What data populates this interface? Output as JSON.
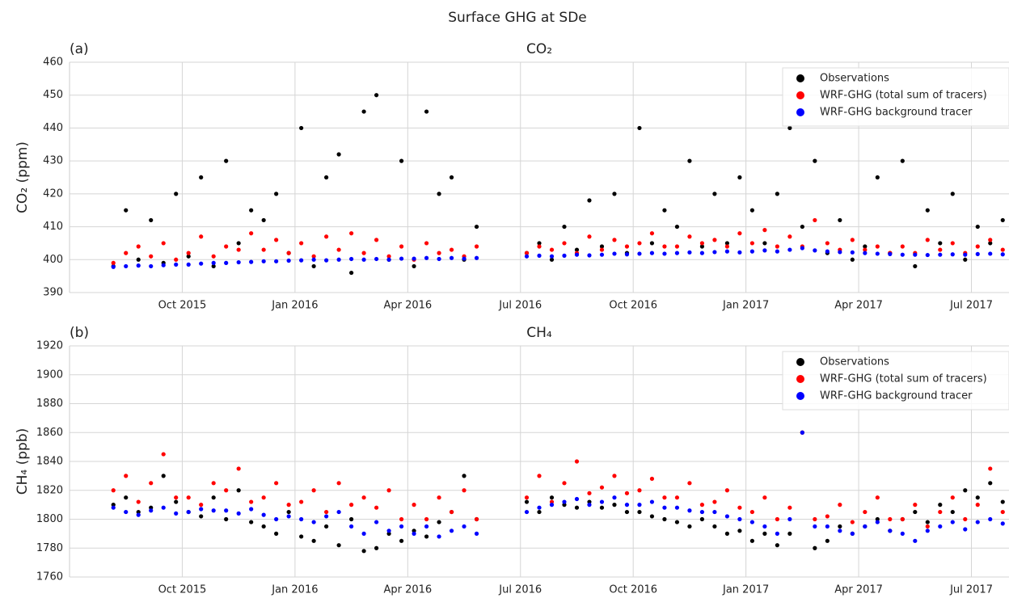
{
  "title": "Surface GHG at SDe",
  "chart_data": [
    {
      "type": "scatter",
      "panel_label": "(a)",
      "title": "CO₂",
      "ylabel": "CO₂ (ppm)",
      "x": [
        "2015-08",
        "2015-08",
        "2015-08",
        "2015-09",
        "2015-09",
        "2015-09",
        "2015-10",
        "2015-10",
        "2015-10",
        "2015-11",
        "2015-11",
        "2015-11",
        "2015-12",
        "2015-12",
        "2015-12",
        "2016-01",
        "2016-01",
        "2016-01",
        "2016-02",
        "2016-02",
        "2016-02",
        "2016-03",
        "2016-03",
        "2016-03",
        "2016-04",
        "2016-04",
        "2016-04",
        "2016-05",
        "2016-05",
        "2016-05",
        "2016-07",
        "2016-07",
        "2016-07",
        "2016-08",
        "2016-08",
        "2016-08",
        "2016-09",
        "2016-09",
        "2016-09",
        "2016-10",
        "2016-10",
        "2016-10",
        "2016-11",
        "2016-11",
        "2016-11",
        "2016-12",
        "2016-12",
        "2016-12",
        "2017-01",
        "2017-01",
        "2017-01",
        "2017-02",
        "2017-02",
        "2017-02",
        "2017-03",
        "2017-03",
        "2017-03",
        "2017-04",
        "2017-04",
        "2017-04",
        "2017-05",
        "2017-05",
        "2017-05",
        "2017-06",
        "2017-06",
        "2017-06",
        "2017-07",
        "2017-07",
        "2017-07"
      ],
      "series": [
        {
          "name": "Observations",
          "color": "#000000",
          "values": [
            398,
            415,
            400,
            412,
            399,
            420,
            401,
            425,
            398,
            430,
            405,
            415,
            412,
            420,
            402,
            440,
            398,
            425,
            432,
            396,
            445,
            450,
            400,
            430,
            398,
            445,
            420,
            425,
            400,
            410,
            402,
            405,
            400,
            410,
            403,
            418,
            404,
            420,
            402,
            440,
            405,
            415,
            410,
            430,
            404,
            420,
            405,
            425,
            415,
            405,
            420,
            440,
            410,
            430,
            402,
            412,
            400,
            404,
            425,
            402,
            430,
            398,
            415,
            405,
            420,
            400,
            410,
            405,
            412
          ]
        },
        {
          "name": "WRF-GHG (total sum of tracers)",
          "color": "#ff0000",
          "values": [
            399,
            402,
            404,
            401,
            405,
            400,
            402,
            407,
            401,
            404,
            403,
            408,
            403,
            406,
            402,
            405,
            401,
            407,
            403,
            408,
            402,
            406,
            401,
            404,
            400,
            405,
            402,
            403,
            401,
            404,
            402,
            404,
            403,
            405,
            402,
            407,
            403,
            406,
            404,
            405,
            408,
            404,
            404,
            407,
            405,
            406,
            404,
            408,
            405,
            409,
            404,
            407,
            404,
            412,
            405,
            403,
            406,
            403,
            404,
            402,
            404,
            402,
            406,
            403,
            405,
            402,
            404,
            406,
            403
          ]
        },
        {
          "name": "WRF-GHG background tracer",
          "color": "#0000ff",
          "values": [
            397.8,
            398,
            398.2,
            398,
            398.3,
            398.5,
            398.5,
            398.8,
            399,
            399,
            399.2,
            399.3,
            399.5,
            399.5,
            399.7,
            399.8,
            400,
            399.8,
            400,
            400.2,
            400,
            400.2,
            400,
            400.3,
            400.3,
            400.5,
            400.2,
            400.5,
            400.3,
            400.5,
            401,
            401.2,
            401,
            401.2,
            401.5,
            401.3,
            401.5,
            401.8,
            401.6,
            401.8,
            402,
            401.8,
            402,
            402.2,
            402,
            402.3,
            402.5,
            402.2,
            402.5,
            402.8,
            402.5,
            403,
            403.5,
            402.8,
            402.5,
            402.3,
            402.2,
            402,
            401.8,
            401.7,
            401.5,
            401.5,
            401.4,
            401.5,
            401.6,
            401.5,
            401.7,
            401.8,
            401.6
          ]
        }
      ],
      "xlim": [
        "2015-07",
        "2017-08"
      ],
      "xticks": [
        {
          "value": "2015-10",
          "label": "Oct 2015"
        },
        {
          "value": "2016-01",
          "label": "Jan 2016"
        },
        {
          "value": "2016-04",
          "label": "Apr 2016"
        },
        {
          "value": "2016-07",
          "label": "Jul 2016"
        },
        {
          "value": "2016-10",
          "label": "Oct 2016"
        },
        {
          "value": "2017-01",
          "label": "Jan 2017"
        },
        {
          "value": "2017-04",
          "label": "Apr 2017"
        },
        {
          "value": "2017-07",
          "label": "Jul 2017"
        }
      ],
      "ylim": [
        390,
        460
      ],
      "yticks": [
        390,
        400,
        410,
        420,
        430,
        440,
        450,
        460
      ],
      "grid": true,
      "legend": "upper right"
    },
    {
      "type": "scatter",
      "panel_label": "(b)",
      "title": "CH₄",
      "ylabel": "CH₄ (ppb)",
      "x": [
        "2015-08",
        "2015-08",
        "2015-08",
        "2015-09",
        "2015-09",
        "2015-09",
        "2015-10",
        "2015-10",
        "2015-10",
        "2015-11",
        "2015-11",
        "2015-11",
        "2015-12",
        "2015-12",
        "2015-12",
        "2016-01",
        "2016-01",
        "2016-01",
        "2016-02",
        "2016-02",
        "2016-02",
        "2016-03",
        "2016-03",
        "2016-03",
        "2016-04",
        "2016-04",
        "2016-04",
        "2016-05",
        "2016-05",
        "2016-05",
        "2016-07",
        "2016-07",
        "2016-07",
        "2016-08",
        "2016-08",
        "2016-08",
        "2016-09",
        "2016-09",
        "2016-09",
        "2016-10",
        "2016-10",
        "2016-10",
        "2016-11",
        "2016-11",
        "2016-11",
        "2016-12",
        "2016-12",
        "2016-12",
        "2017-01",
        "2017-01",
        "2017-01",
        "2017-02",
        "2017-02",
        "2017-02",
        "2017-03",
        "2017-03",
        "2017-03",
        "2017-04",
        "2017-04",
        "2017-04",
        "2017-05",
        "2017-05",
        "2017-05",
        "2017-06",
        "2017-06",
        "2017-06",
        "2017-07",
        "2017-07",
        "2017-07"
      ],
      "series": [
        {
          "name": "Observations",
          "color": "#000000",
          "values": [
            1810,
            1815,
            1805,
            1808,
            1830,
            1812,
            1805,
            1802,
            1815,
            1800,
            1820,
            1798,
            1795,
            1790,
            1805,
            1788,
            1785,
            1795,
            1782,
            1800,
            1778,
            1780,
            1790,
            1785,
            1792,
            1788,
            1798,
            1805,
            1830,
            1800,
            1812,
            1805,
            1815,
            1810,
            1808,
            1812,
            1808,
            1810,
            1805,
            1805,
            1802,
            1800,
            1798,
            1795,
            1800,
            1795,
            1790,
            1792,
            1785,
            1790,
            1782,
            1790,
            1860,
            1780,
            1785,
            1795,
            1790,
            1795,
            1800,
            1792,
            1800,
            1805,
            1798,
            1810,
            1805,
            1820,
            1815,
            1825,
            1812
          ]
        },
        {
          "name": "WRF-GHG (total sum of tracers)",
          "color": "#ff0000",
          "values": [
            1820,
            1830,
            1812,
            1825,
            1845,
            1815,
            1815,
            1810,
            1825,
            1820,
            1835,
            1812,
            1815,
            1825,
            1810,
            1812,
            1820,
            1805,
            1825,
            1810,
            1815,
            1808,
            1820,
            1800,
            1810,
            1800,
            1815,
            1805,
            1820,
            1800,
            1815,
            1830,
            1812,
            1825,
            1840,
            1818,
            1822,
            1830,
            1818,
            1820,
            1828,
            1815,
            1815,
            1825,
            1810,
            1812,
            1820,
            1808,
            1805,
            1815,
            1800,
            1808,
            1860,
            1800,
            1802,
            1810,
            1798,
            1805,
            1815,
            1800,
            1800,
            1810,
            1795,
            1805,
            1815,
            1800,
            1810,
            1835,
            1805
          ]
        },
        {
          "name": "WRF-GHG background tracer",
          "color": "#0000ff",
          "values": [
            1808,
            1805,
            1803,
            1806,
            1808,
            1804,
            1805,
            1807,
            1806,
            1806,
            1804,
            1807,
            1803,
            1800,
            1802,
            1800,
            1798,
            1802,
            1805,
            1795,
            1790,
            1798,
            1792,
            1795,
            1790,
            1795,
            1788,
            1792,
            1795,
            1790,
            1805,
            1808,
            1810,
            1812,
            1814,
            1810,
            1812,
            1815,
            1810,
            1810,
            1812,
            1808,
            1808,
            1806,
            1805,
            1805,
            1802,
            1800,
            1798,
            1795,
            1790,
            1800,
            1860,
            1795,
            1795,
            1792,
            1790,
            1795,
            1798,
            1792,
            1790,
            1785,
            1792,
            1795,
            1798,
            1793,
            1798,
            1800,
            1797
          ]
        }
      ],
      "xlim": [
        "2015-07",
        "2017-08"
      ],
      "xticks": [
        {
          "value": "2015-10",
          "label": "Oct 2015"
        },
        {
          "value": "2016-01",
          "label": "Jan 2016"
        },
        {
          "value": "2016-04",
          "label": "Apr 2016"
        },
        {
          "value": "2016-07",
          "label": "Jul 2016"
        },
        {
          "value": "2016-10",
          "label": "Oct 2016"
        },
        {
          "value": "2017-01",
          "label": "Jan 2017"
        },
        {
          "value": "2017-04",
          "label": "Apr 2017"
        },
        {
          "value": "2017-07",
          "label": "Jul 2017"
        }
      ],
      "ylim": [
        1760,
        1920
      ],
      "yticks": [
        1760,
        1780,
        1800,
        1820,
        1840,
        1860,
        1880,
        1900,
        1920
      ],
      "grid": true,
      "legend": "upper right"
    }
  ]
}
